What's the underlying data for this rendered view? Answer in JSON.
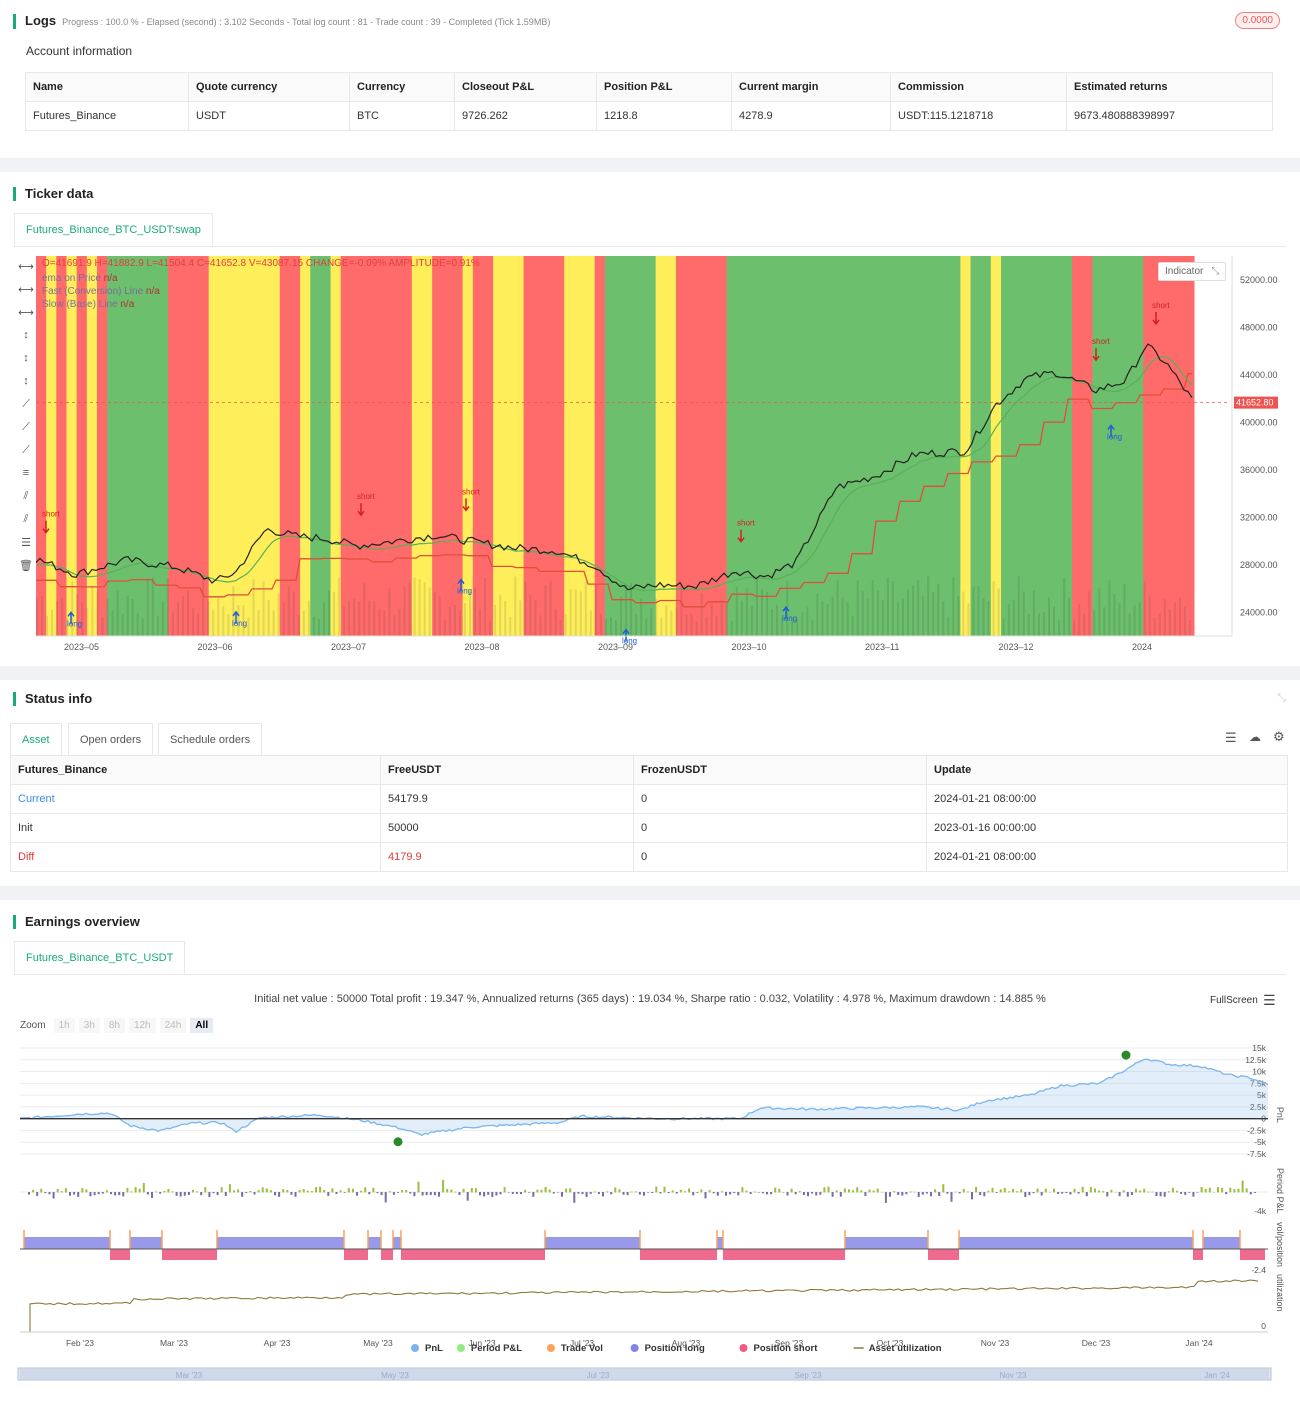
{
  "logs": {
    "title": "Logs",
    "progress": "Progress : 100.0 % - Elapsed (second) : 3.102  Seconds - Total log count : 81 - Trade count : 39 - Completed (Tick 1.59MB)",
    "badge": "0.0000",
    "account_title": "Account information",
    "headers": [
      "Name",
      "Quote currency",
      "Currency",
      "Closeout P&L",
      "Position P&L",
      "Current margin",
      "Commission",
      "Estimated returns"
    ],
    "row": [
      "Futures_Binance",
      "USDT",
      "BTC",
      "9726.262",
      "1218.8",
      "4278.9",
      "USDT:115.1218718",
      "9673.480888398997"
    ]
  },
  "ticker": {
    "title": "Ticker data",
    "tab": "Futures_Binance_BTC_USDT:swap",
    "ohlc": "O=41691.9 H=41882.9 L=41504.4 C=41652.8 V=43087.15 CHANGE=-0.09% AMPLITUDE=0.91%",
    "legend": [
      {
        "label": "ema on Price",
        "value": "n/a"
      },
      {
        "label": "Fast (Conversion) Line",
        "value": "n/a"
      },
      {
        "label": "Slow (Base) Line",
        "value": "n/a"
      }
    ],
    "indicator_btn": "Indicator",
    "price_ticks": [
      "52000.00",
      "48000.00",
      "44000.00",
      "40000.00",
      "36000.00",
      "32000.00",
      "28000.00",
      "24000.00"
    ],
    "last_price": "41652.80",
    "date_ticks": [
      "2023–05",
      "2023–06",
      "2023–07",
      "2023–08",
      "2023–09",
      "2023–10",
      "2023–11",
      "2023–12",
      "2024"
    ],
    "colors": {
      "red": "#ff6b6b",
      "yellow": "#fdee5a",
      "green": "#6cbf6c",
      "black": "#222222",
      "price_tag": "#ef5350"
    }
  },
  "status": {
    "title": "Status info",
    "tabs": [
      "Asset",
      "Open orders",
      "Schedule orders"
    ],
    "headers": [
      "Futures_Binance",
      "FreeUSDT",
      "FrozenUSDT",
      "Update"
    ],
    "rows": [
      [
        "Current",
        "54179.9",
        "0",
        "2024-01-21 08:00:00"
      ],
      [
        "Init",
        "50000",
        "0",
        "2023-01-16 00:00:00"
      ],
      [
        "Diff",
        "4179.9",
        "0",
        "2024-01-21 08:00:00"
      ]
    ]
  },
  "earnings": {
    "title": "Earnings overview",
    "tab": "Futures_Binance_BTC_USDT",
    "summary": "Initial net value : 50000 Total profit : 19.347 %, Annualized returns (365 days) : 19.034 %, Sharpe ratio : 0.032, Volatility : 4.978 %, Maximum drawdown : 14.885 %",
    "fullscreen": "FullScreen",
    "zoom_label": "Zoom",
    "zoom_opts": [
      "1h",
      "3h",
      "8h",
      "12h",
      "24h",
      "All"
    ],
    "pnl_ticks": [
      "15k",
      "12.5k",
      "10k",
      "7.5k",
      "5k",
      "2.5k",
      "0",
      "-2.5k",
      "-5k",
      "-7.5k"
    ],
    "pnl_axis": "PnL",
    "period_axis": "Period P&L",
    "period_tick": "-4k",
    "pos_axis": "vol/position",
    "pos_tick": "-2.4",
    "util_axis": "utilization",
    "util_tick": "0",
    "month_ticks": [
      "Feb '23",
      "Mar '23",
      "Apr '23",
      "May '23",
      "Jun '23",
      "Jul '23",
      "Aug '23",
      "Sep '23",
      "Oct '23",
      "Nov '23",
      "Dec '23",
      "Jan '24"
    ],
    "nav_ticks": [
      "Mar '23",
      "May '23",
      "Jul '23",
      "Sep '23",
      "Nov '23",
      "Jan '24"
    ],
    "legend": [
      {
        "label": "PnL",
        "color": "#7cb5ec"
      },
      {
        "label": "Period P&L",
        "color": "#90ed7d"
      },
      {
        "label": "Trade Vol",
        "color": "#f7a35c"
      },
      {
        "label": "Position long",
        "color": "#8085e9"
      },
      {
        "label": "Position short",
        "color": "#f15c80"
      },
      {
        "label": "Asset utilization",
        "color": "#8d7a3c"
      }
    ]
  }
}
